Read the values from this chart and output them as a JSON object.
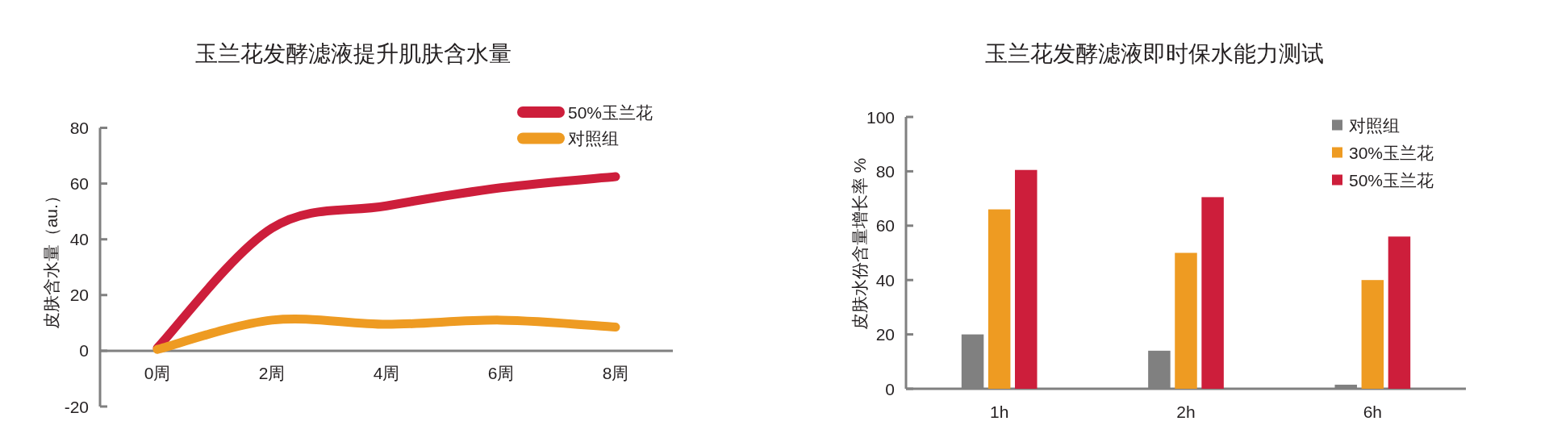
{
  "chart_data": [
    {
      "type": "line",
      "title": "玉兰花发酵滤液提升肌肤含水量",
      "ylabel": "皮肤含水量（au.）",
      "categories": [
        "0周",
        "2周",
        "4周",
        "6周",
        "8周"
      ],
      "series": [
        {
          "name": "50%玉兰花",
          "color": "#cd1e3b",
          "values": [
            1,
            44,
            52,
            58.5,
            62.5
          ]
        },
        {
          "name": "对照组",
          "color": "#ee9b22",
          "values": [
            0.5,
            11,
            9.5,
            11,
            8.5
          ]
        }
      ],
      "ylim": [
        -20,
        80
      ],
      "yticks": [
        -20,
        0,
        20,
        40,
        60,
        80
      ],
      "legend": "top right"
    },
    {
      "type": "bar",
      "title": "玉兰花发酵滤液即时保水能力测试",
      "ylabel": "皮肤水份含量增长率 %",
      "categories": [
        "1h",
        "2h",
        "6h"
      ],
      "series": [
        {
          "name": "对照组",
          "color": "#808080",
          "values": [
            20,
            14,
            1.5
          ]
        },
        {
          "name": "30%玉兰花",
          "color": "#ee9b22",
          "values": [
            66,
            50,
            40
          ]
        },
        {
          "name": "50%玉兰花",
          "color": "#cd1e3b",
          "values": [
            80.5,
            70.5,
            56
          ]
        }
      ],
      "ylim": [
        0,
        100
      ],
      "yticks": [
        0,
        20,
        40,
        60,
        80,
        100
      ],
      "legend": "top right"
    }
  ]
}
